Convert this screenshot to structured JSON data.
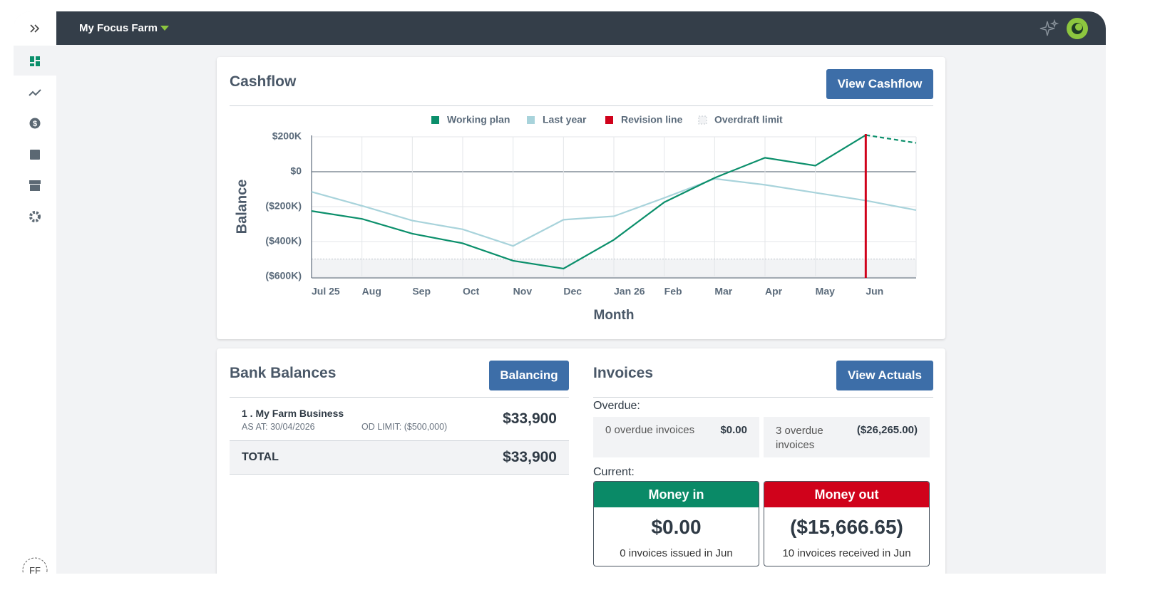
{
  "header": {
    "farm_name": "My Focus Farm"
  },
  "sidebar": {
    "avatar": "FF"
  },
  "cashflow": {
    "title": "Cashflow",
    "button": "View Cashflow"
  },
  "chart_data": {
    "type": "line",
    "ylabel": "Balance",
    "xlabel": "Month",
    "categories": [
      "Jul 25",
      "Aug",
      "Sep",
      "Oct",
      "Nov",
      "Dec",
      "Jan 26",
      "Feb",
      "Mar",
      "Apr",
      "May",
      "Jun",
      null
    ],
    "series": [
      {
        "name": "Working plan",
        "color": "#0b8f6b",
        "values": [
          -225000,
          -270000,
          -355000,
          -410000,
          -510000,
          -555000,
          -390000,
          -175000,
          -35000,
          80000,
          35000,
          210000,
          165000
        ]
      },
      {
        "name": "Last year",
        "color": "#a8d3db",
        "values": [
          -115000,
          -195000,
          -280000,
          -330000,
          -425000,
          -275000,
          -255000,
          -150000,
          -40000,
          -75000,
          -120000,
          -165000,
          -220000
        ]
      }
    ],
    "revision_line": {
      "name": "Revision line",
      "color": "#d0021b",
      "at": "Jun"
    },
    "overdraft_limit": {
      "name": "Overdraft limit",
      "color": "#f2f3f5",
      "value": -500000
    },
    "ylim": [
      -600000,
      200000
    ],
    "yticks": [
      {
        "value": -600000,
        "label": "($600K)"
      },
      {
        "value": -400000,
        "label": "($400K)"
      },
      {
        "value": -200000,
        "label": "($200K)"
      },
      {
        "value": 0,
        "label": "$0"
      },
      {
        "value": 200000,
        "label": "$200K"
      }
    ],
    "grid": true,
    "legend": "top"
  },
  "bank_balances": {
    "title": "Bank Balances",
    "button": "Balancing",
    "accounts": [
      {
        "name": "1 . My Farm Business",
        "as_at": "AS AT: 30/04/2026",
        "od_limit": "OD LIMIT: ($500,000)",
        "balance": "$33,900"
      }
    ],
    "total_label": "TOTAL",
    "total": "$33,900"
  },
  "invoices": {
    "title": "Invoices",
    "button": "View Actuals",
    "overdue_label": "Overdue:",
    "overdue": [
      {
        "label": "0 overdue invoices",
        "amount": "$0.00"
      },
      {
        "label": "3 overdue invoices",
        "amount": "($26,265.00)"
      }
    ],
    "current_label": "Current:",
    "current": [
      {
        "title": "Money in",
        "amount": "$0.00",
        "note": "0 invoices issued in Jun"
      },
      {
        "title": "Money out",
        "amount": "($15,666.65)",
        "note": "10 invoices received in Jun"
      }
    ]
  }
}
